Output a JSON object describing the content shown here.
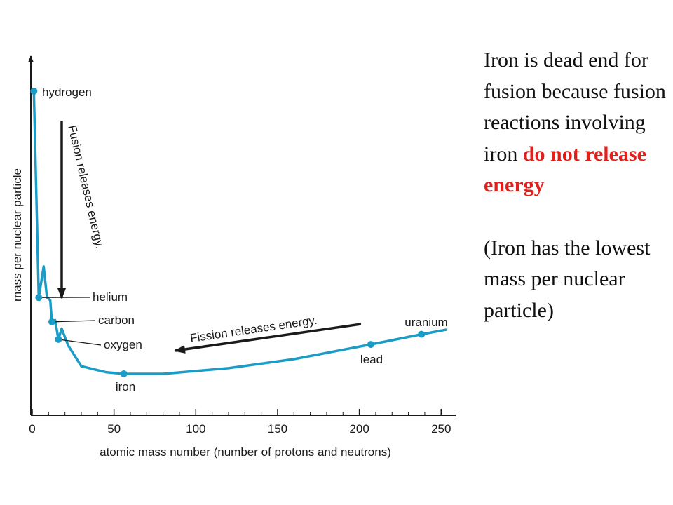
{
  "chart_data": {
    "type": "line",
    "xlabel": "atomic mass number (number of protons and neutrons)",
    "ylabel": "mass per nuclear particle",
    "xlim": [
      0,
      260
    ],
    "x_ticks": [
      0,
      50,
      100,
      150,
      200,
      250
    ],
    "y_scale": "relative (no numeric ticks)",
    "line_color": "#1a9cc6",
    "points": [
      {
        "label": "hydrogen",
        "x": 1,
        "y": 1.0
      },
      {
        "label": "helium",
        "x": 4,
        "y": 0.27
      },
      {
        "label": "carbon",
        "x": 12,
        "y": 0.184
      },
      {
        "label": "oxygen",
        "x": 16,
        "y": 0.122
      },
      {
        "label": "iron",
        "x": 56,
        "y": 0.0
      },
      {
        "label": "lead",
        "x": 207,
        "y": 0.104
      },
      {
        "label": "uranium",
        "x": 238,
        "y": 0.14
      }
    ],
    "curve": [
      {
        "x": 1,
        "y": 1.0
      },
      {
        "x": 4,
        "y": 0.27
      },
      {
        "x": 7,
        "y": 0.38
      },
      {
        "x": 9,
        "y": 0.27
      },
      {
        "x": 11,
        "y": 0.26
      },
      {
        "x": 12,
        "y": 0.184
      },
      {
        "x": 14,
        "y": 0.19
      },
      {
        "x": 16,
        "y": 0.122
      },
      {
        "x": 18,
        "y": 0.16
      },
      {
        "x": 22,
        "y": 0.1
      },
      {
        "x": 30,
        "y": 0.027
      },
      {
        "x": 45,
        "y": 0.006
      },
      {
        "x": 56,
        "y": 0.0
      },
      {
        "x": 80,
        "y": 0.0
      },
      {
        "x": 120,
        "y": 0.02
      },
      {
        "x": 160,
        "y": 0.052
      },
      {
        "x": 207,
        "y": 0.104
      },
      {
        "x": 238,
        "y": 0.14
      },
      {
        "x": 253,
        "y": 0.156
      }
    ],
    "annotations": {
      "fusion": "Fusion releases energy.",
      "fission": "Fission releases energy."
    }
  },
  "side_text": {
    "part1": "Iron is dead end for fusion because fusion reactions involving iron",
    "part2": "do not release energy",
    "part2_color": "#e0201b",
    "part3": "(Iron has the lowest mass per nuclear particle)"
  }
}
